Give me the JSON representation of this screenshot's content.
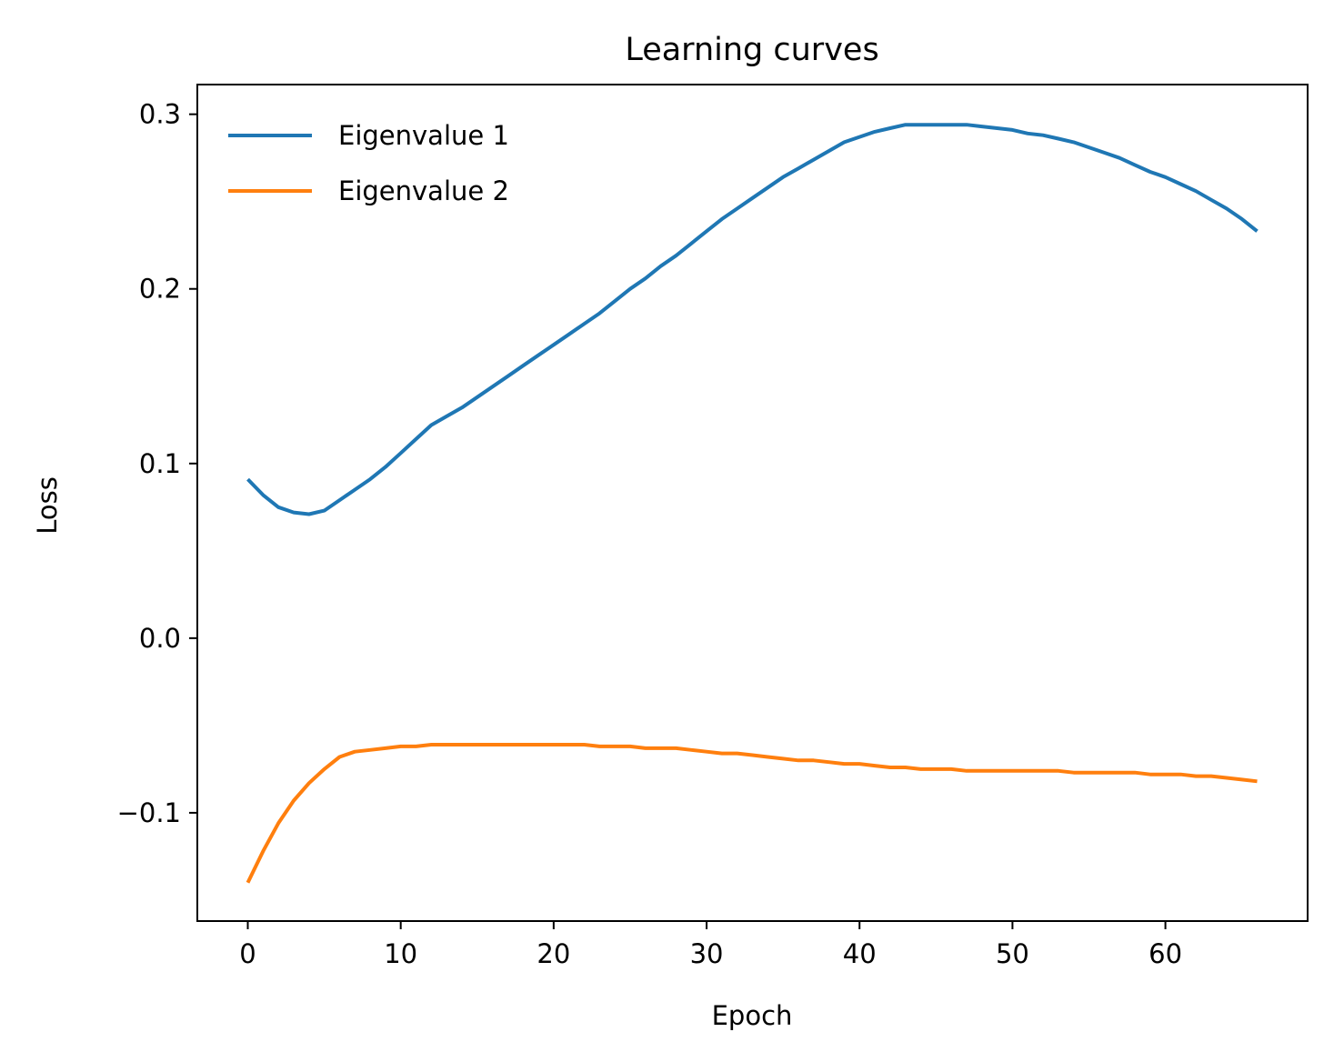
{
  "chart_data": {
    "type": "line",
    "title": "Learning curves",
    "xlabel": "Epoch",
    "ylabel": "Loss",
    "xlim": [
      -3.3,
      69.3
    ],
    "ylim": [
      -0.162,
      0.317
    ],
    "xticks": [
      0,
      10,
      20,
      30,
      40,
      50,
      60
    ],
    "xtick_labels": [
      "0",
      "10",
      "20",
      "30",
      "40",
      "50",
      "60"
    ],
    "yticks": [
      -0.1,
      0.0,
      0.1,
      0.2,
      0.3
    ],
    "ytick_labels": [
      "−0.1",
      "0.0",
      "0.1",
      "0.2",
      "0.3"
    ],
    "grid": false,
    "legend_position": "top-left",
    "x": [
      0,
      1,
      2,
      3,
      4,
      5,
      6,
      7,
      8,
      9,
      10,
      11,
      12,
      13,
      14,
      15,
      16,
      17,
      18,
      19,
      20,
      21,
      22,
      23,
      24,
      25,
      26,
      27,
      28,
      29,
      30,
      31,
      32,
      33,
      34,
      35,
      36,
      37,
      38,
      39,
      40,
      41,
      42,
      43,
      44,
      45,
      46,
      47,
      48,
      49,
      50,
      51,
      52,
      53,
      54,
      55,
      56,
      57,
      58,
      59,
      60,
      61,
      62,
      63,
      64,
      65,
      66
    ],
    "series": [
      {
        "name": "Eigenvalue 1",
        "color": "#1f77b4",
        "values": [
          0.091,
          0.082,
          0.075,
          0.072,
          0.071,
          0.073,
          0.079,
          0.085,
          0.091,
          0.098,
          0.106,
          0.114,
          0.122,
          0.127,
          0.132,
          0.138,
          0.144,
          0.15,
          0.156,
          0.162,
          0.168,
          0.174,
          0.18,
          0.186,
          0.193,
          0.2,
          0.206,
          0.213,
          0.219,
          0.226,
          0.233,
          0.24,
          0.246,
          0.252,
          0.258,
          0.264,
          0.269,
          0.274,
          0.279,
          0.284,
          0.287,
          0.29,
          0.292,
          0.294,
          0.294,
          0.294,
          0.294,
          0.294,
          0.293,
          0.292,
          0.291,
          0.289,
          0.288,
          0.286,
          0.284,
          0.281,
          0.278,
          0.275,
          0.271,
          0.267,
          0.264,
          0.26,
          0.256,
          0.251,
          0.246,
          0.24,
          0.233
        ]
      },
      {
        "name": "Eigenvalue 2",
        "color": "#ff7f0e",
        "values": [
          -0.14,
          -0.122,
          -0.106,
          -0.093,
          -0.083,
          -0.075,
          -0.068,
          -0.065,
          -0.064,
          -0.063,
          -0.062,
          -0.062,
          -0.061,
          -0.061,
          -0.061,
          -0.061,
          -0.061,
          -0.061,
          -0.061,
          -0.061,
          -0.061,
          -0.061,
          -0.061,
          -0.062,
          -0.062,
          -0.062,
          -0.063,
          -0.063,
          -0.063,
          -0.064,
          -0.065,
          -0.066,
          -0.066,
          -0.067,
          -0.068,
          -0.069,
          -0.07,
          -0.07,
          -0.071,
          -0.072,
          -0.072,
          -0.073,
          -0.074,
          -0.074,
          -0.075,
          -0.075,
          -0.075,
          -0.076,
          -0.076,
          -0.076,
          -0.076,
          -0.076,
          -0.076,
          -0.076,
          -0.077,
          -0.077,
          -0.077,
          -0.077,
          -0.077,
          -0.078,
          -0.078,
          -0.078,
          -0.079,
          -0.079,
          -0.08,
          -0.081,
          -0.082
        ]
      }
    ]
  }
}
